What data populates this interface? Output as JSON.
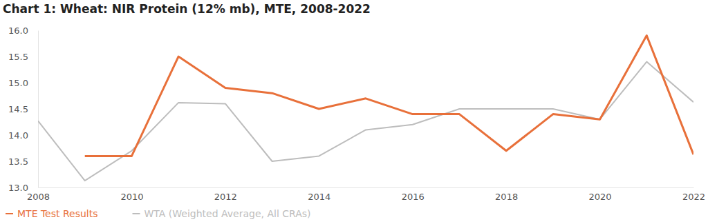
{
  "chart_data": {
    "type": "line",
    "title": "Chart 1: Wheat: NIR Protein (12% mb), MTE, 2008-2022",
    "x": [
      2008,
      2009,
      2010,
      2011,
      2012,
      2013,
      2014,
      2015,
      2016,
      2017,
      2018,
      2019,
      2020,
      2021,
      2022
    ],
    "series": [
      {
        "name": "MTE Test Results",
        "color": "#e8703a",
        "values": [
          null,
          13.6,
          13.6,
          15.5,
          14.9,
          14.8,
          14.5,
          14.7,
          14.4,
          14.4,
          13.7,
          14.4,
          14.3,
          15.9,
          13.63
        ]
      },
      {
        "name": "WTA (Weighted Average, All CRAs)",
        "color": "#bdbdbd",
        "values": [
          14.27,
          13.13,
          13.7,
          14.62,
          14.6,
          13.5,
          13.6,
          14.1,
          14.2,
          14.5,
          14.5,
          14.5,
          14.3,
          15.4,
          14.63
        ]
      }
    ],
    "xlim": [
      2008,
      2022
    ],
    "xticks": [
      2008,
      2010,
      2012,
      2014,
      2016,
      2018,
      2020,
      2022
    ],
    "ylim": [
      13,
      16
    ],
    "yticks": [
      {
        "value": 13,
        "label": "13.0"
      },
      13.5,
      {
        "value": 14,
        "label": "14.0"
      },
      14.5,
      {
        "value": 15,
        "label": "15.0"
      },
      15.5,
      {
        "value": 16,
        "label": "16.0"
      }
    ],
    "grid": false,
    "legend": "bottom"
  }
}
